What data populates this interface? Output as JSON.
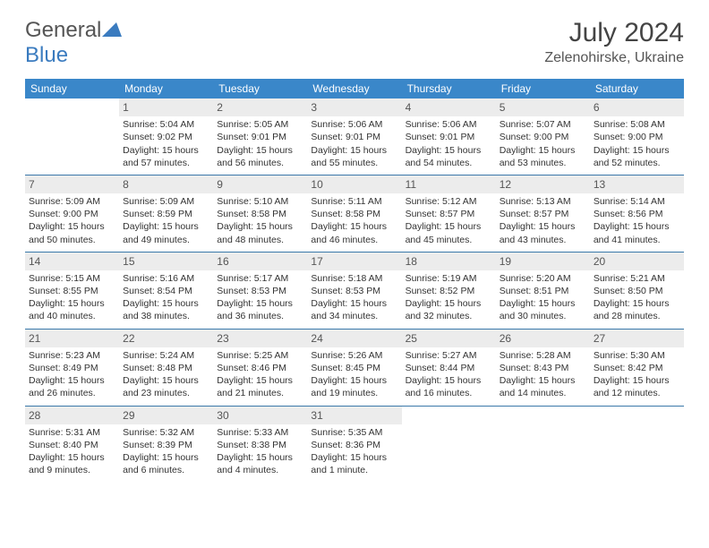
{
  "logo": {
    "text1": "General",
    "text2": "Blue"
  },
  "title": "July 2024",
  "location": "Zelenohirske, Ukraine",
  "colors": {
    "header_bg": "#3a87c9",
    "header_text": "#ffffff",
    "daynum_bg": "#ececec",
    "border": "#3a78aa",
    "accent": "#3a7bbf"
  },
  "day_headers": [
    "Sunday",
    "Monday",
    "Tuesday",
    "Wednesday",
    "Thursday",
    "Friday",
    "Saturday"
  ],
  "weeks": [
    [
      null,
      {
        "n": "1",
        "sr": "Sunrise: 5:04 AM",
        "ss": "Sunset: 9:02 PM",
        "dl1": "Daylight: 15 hours",
        "dl2": "and 57 minutes."
      },
      {
        "n": "2",
        "sr": "Sunrise: 5:05 AM",
        "ss": "Sunset: 9:01 PM",
        "dl1": "Daylight: 15 hours",
        "dl2": "and 56 minutes."
      },
      {
        "n": "3",
        "sr": "Sunrise: 5:06 AM",
        "ss": "Sunset: 9:01 PM",
        "dl1": "Daylight: 15 hours",
        "dl2": "and 55 minutes."
      },
      {
        "n": "4",
        "sr": "Sunrise: 5:06 AM",
        "ss": "Sunset: 9:01 PM",
        "dl1": "Daylight: 15 hours",
        "dl2": "and 54 minutes."
      },
      {
        "n": "5",
        "sr": "Sunrise: 5:07 AM",
        "ss": "Sunset: 9:00 PM",
        "dl1": "Daylight: 15 hours",
        "dl2": "and 53 minutes."
      },
      {
        "n": "6",
        "sr": "Sunrise: 5:08 AM",
        "ss": "Sunset: 9:00 PM",
        "dl1": "Daylight: 15 hours",
        "dl2": "and 52 minutes."
      }
    ],
    [
      {
        "n": "7",
        "sr": "Sunrise: 5:09 AM",
        "ss": "Sunset: 9:00 PM",
        "dl1": "Daylight: 15 hours",
        "dl2": "and 50 minutes."
      },
      {
        "n": "8",
        "sr": "Sunrise: 5:09 AM",
        "ss": "Sunset: 8:59 PM",
        "dl1": "Daylight: 15 hours",
        "dl2": "and 49 minutes."
      },
      {
        "n": "9",
        "sr": "Sunrise: 5:10 AM",
        "ss": "Sunset: 8:58 PM",
        "dl1": "Daylight: 15 hours",
        "dl2": "and 48 minutes."
      },
      {
        "n": "10",
        "sr": "Sunrise: 5:11 AM",
        "ss": "Sunset: 8:58 PM",
        "dl1": "Daylight: 15 hours",
        "dl2": "and 46 minutes."
      },
      {
        "n": "11",
        "sr": "Sunrise: 5:12 AM",
        "ss": "Sunset: 8:57 PM",
        "dl1": "Daylight: 15 hours",
        "dl2": "and 45 minutes."
      },
      {
        "n": "12",
        "sr": "Sunrise: 5:13 AM",
        "ss": "Sunset: 8:57 PM",
        "dl1": "Daylight: 15 hours",
        "dl2": "and 43 minutes."
      },
      {
        "n": "13",
        "sr": "Sunrise: 5:14 AM",
        "ss": "Sunset: 8:56 PM",
        "dl1": "Daylight: 15 hours",
        "dl2": "and 41 minutes."
      }
    ],
    [
      {
        "n": "14",
        "sr": "Sunrise: 5:15 AM",
        "ss": "Sunset: 8:55 PM",
        "dl1": "Daylight: 15 hours",
        "dl2": "and 40 minutes."
      },
      {
        "n": "15",
        "sr": "Sunrise: 5:16 AM",
        "ss": "Sunset: 8:54 PM",
        "dl1": "Daylight: 15 hours",
        "dl2": "and 38 minutes."
      },
      {
        "n": "16",
        "sr": "Sunrise: 5:17 AM",
        "ss": "Sunset: 8:53 PM",
        "dl1": "Daylight: 15 hours",
        "dl2": "and 36 minutes."
      },
      {
        "n": "17",
        "sr": "Sunrise: 5:18 AM",
        "ss": "Sunset: 8:53 PM",
        "dl1": "Daylight: 15 hours",
        "dl2": "and 34 minutes."
      },
      {
        "n": "18",
        "sr": "Sunrise: 5:19 AM",
        "ss": "Sunset: 8:52 PM",
        "dl1": "Daylight: 15 hours",
        "dl2": "and 32 minutes."
      },
      {
        "n": "19",
        "sr": "Sunrise: 5:20 AM",
        "ss": "Sunset: 8:51 PM",
        "dl1": "Daylight: 15 hours",
        "dl2": "and 30 minutes."
      },
      {
        "n": "20",
        "sr": "Sunrise: 5:21 AM",
        "ss": "Sunset: 8:50 PM",
        "dl1": "Daylight: 15 hours",
        "dl2": "and 28 minutes."
      }
    ],
    [
      {
        "n": "21",
        "sr": "Sunrise: 5:23 AM",
        "ss": "Sunset: 8:49 PM",
        "dl1": "Daylight: 15 hours",
        "dl2": "and 26 minutes."
      },
      {
        "n": "22",
        "sr": "Sunrise: 5:24 AM",
        "ss": "Sunset: 8:48 PM",
        "dl1": "Daylight: 15 hours",
        "dl2": "and 23 minutes."
      },
      {
        "n": "23",
        "sr": "Sunrise: 5:25 AM",
        "ss": "Sunset: 8:46 PM",
        "dl1": "Daylight: 15 hours",
        "dl2": "and 21 minutes."
      },
      {
        "n": "24",
        "sr": "Sunrise: 5:26 AM",
        "ss": "Sunset: 8:45 PM",
        "dl1": "Daylight: 15 hours",
        "dl2": "and 19 minutes."
      },
      {
        "n": "25",
        "sr": "Sunrise: 5:27 AM",
        "ss": "Sunset: 8:44 PM",
        "dl1": "Daylight: 15 hours",
        "dl2": "and 16 minutes."
      },
      {
        "n": "26",
        "sr": "Sunrise: 5:28 AM",
        "ss": "Sunset: 8:43 PM",
        "dl1": "Daylight: 15 hours",
        "dl2": "and 14 minutes."
      },
      {
        "n": "27",
        "sr": "Sunrise: 5:30 AM",
        "ss": "Sunset: 8:42 PM",
        "dl1": "Daylight: 15 hours",
        "dl2": "and 12 minutes."
      }
    ],
    [
      {
        "n": "28",
        "sr": "Sunrise: 5:31 AM",
        "ss": "Sunset: 8:40 PM",
        "dl1": "Daylight: 15 hours",
        "dl2": "and 9 minutes."
      },
      {
        "n": "29",
        "sr": "Sunrise: 5:32 AM",
        "ss": "Sunset: 8:39 PM",
        "dl1": "Daylight: 15 hours",
        "dl2": "and 6 minutes."
      },
      {
        "n": "30",
        "sr": "Sunrise: 5:33 AM",
        "ss": "Sunset: 8:38 PM",
        "dl1": "Daylight: 15 hours",
        "dl2": "and 4 minutes."
      },
      {
        "n": "31",
        "sr": "Sunrise: 5:35 AM",
        "ss": "Sunset: 8:36 PM",
        "dl1": "Daylight: 15 hours",
        "dl2": "and 1 minute."
      },
      null,
      null,
      null
    ]
  ]
}
